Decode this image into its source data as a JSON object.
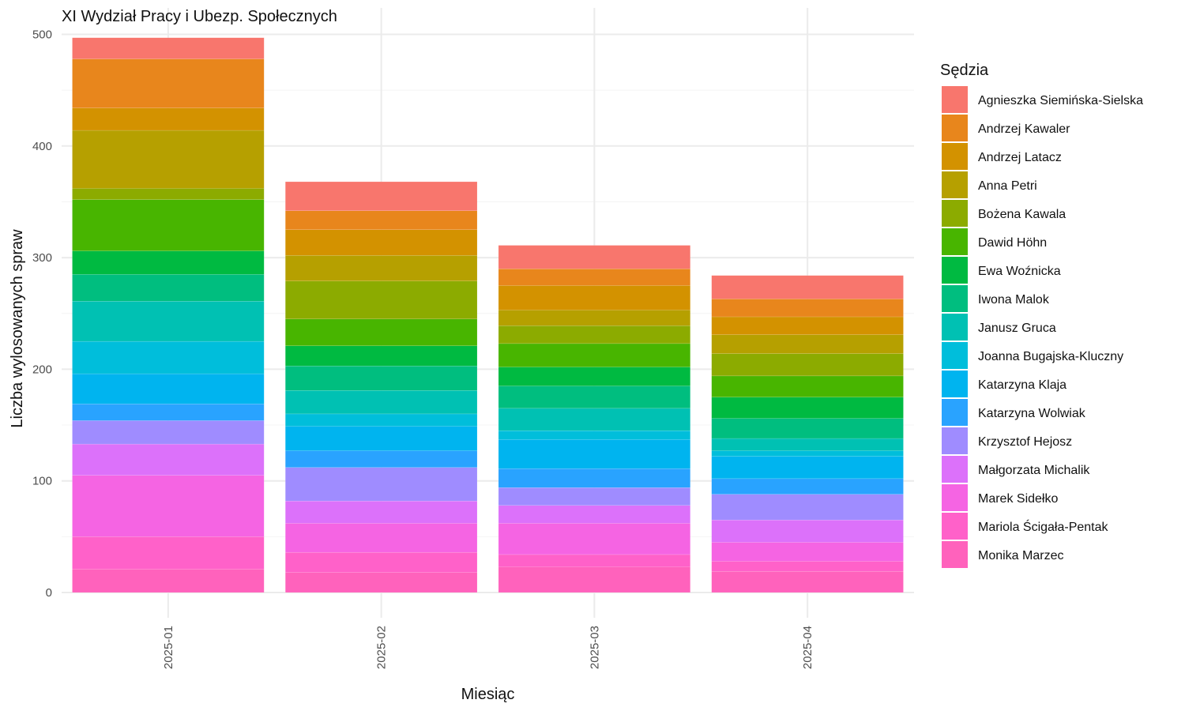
{
  "chart_data": {
    "type": "bar",
    "stacked": true,
    "title": "XI Wydział Pracy i Ubezp. Społecznych",
    "xlabel": "Miesiąc",
    "ylabel": "Liczba wylosowanych spraw",
    "ylim": [
      0,
      500
    ],
    "yticks": [
      0,
      100,
      200,
      300,
      400,
      500
    ],
    "grid": true,
    "legend_position": "right",
    "legend_title": "Sędzia",
    "categories": [
      "2025-01",
      "2025-02",
      "2025-03",
      "2025-04"
    ],
    "series": [
      {
        "name": "Monika Marzec",
        "color": "#FF62BC",
        "values": [
          21,
          18,
          23,
          19
        ]
      },
      {
        "name": "Mariola Ścigała-Pentak",
        "color": "#FF61C9",
        "values": [
          29,
          18,
          11,
          9
        ]
      },
      {
        "name": "Marek Sidełko",
        "color": "#F564E3",
        "values": [
          55,
          26,
          28,
          17
        ]
      },
      {
        "name": "Małgorzata Michalik",
        "color": "#DC71FA",
        "values": [
          28,
          20,
          16,
          20
        ]
      },
      {
        "name": "Krzysztof Hejosz",
        "color": "#9F8CFF",
        "values": [
          21,
          30,
          16,
          23
        ]
      },
      {
        "name": "Katarzyna Wolwiak",
        "color": "#29A3FF",
        "values": [
          15,
          15,
          17,
          14
        ]
      },
      {
        "name": "Katarzyna Klaja",
        "color": "#00B4EF",
        "values": [
          27,
          22,
          26,
          20
        ]
      },
      {
        "name": "Joanna Bugajska-Kluczny",
        "color": "#00BEDB",
        "values": [
          29,
          11,
          8,
          5
        ]
      },
      {
        "name": "Janusz Gruca",
        "color": "#00C1B3",
        "values": [
          36,
          21,
          20,
          11
        ]
      },
      {
        "name": "Iwona Malok",
        "color": "#00BE7F",
        "values": [
          24,
          22,
          20,
          18
        ]
      },
      {
        "name": "Ewa Woźnicka",
        "color": "#00BA41",
        "values": [
          21,
          18,
          17,
          19
        ]
      },
      {
        "name": "Dawid Höhn",
        "color": "#48B500",
        "values": [
          46,
          24,
          21,
          19
        ]
      },
      {
        "name": "Bożena Kawala",
        "color": "#8CAB00",
        "values": [
          10,
          34,
          16,
          20
        ]
      },
      {
        "name": "Anna Petri",
        "color": "#B6A000",
        "values": [
          52,
          23,
          14,
          17
        ]
      },
      {
        "name": "Andrzej Latacz",
        "color": "#D39200",
        "values": [
          20,
          23,
          22,
          16
        ]
      },
      {
        "name": "Andrzej Kawaler",
        "color": "#E8861C",
        "values": [
          44,
          17,
          15,
          16
        ]
      },
      {
        "name": "Agnieszka Siemińska-Sielska",
        "color": "#F8766D",
        "values": [
          19,
          26,
          21,
          21
        ]
      }
    ]
  }
}
